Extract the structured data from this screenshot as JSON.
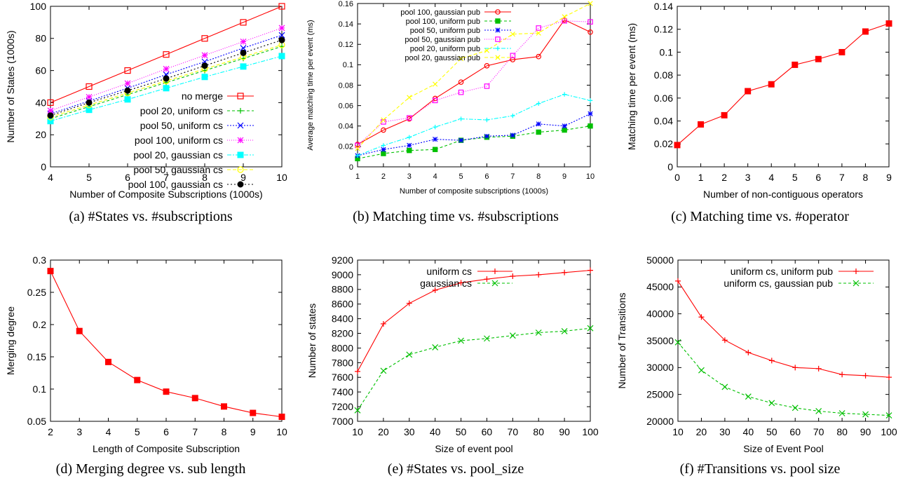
{
  "chart_data": [
    {
      "id": "a",
      "type": "line",
      "caption": "(a)  #States vs. #subscriptions",
      "xlabel": "Number of Composite Subscriptions (1000s)",
      "ylabel": "Number of States (1000s)",
      "xlim": [
        4,
        10
      ],
      "ylim": [
        0,
        100
      ],
      "xticks": [
        4,
        5,
        6,
        7,
        8,
        9,
        10
      ],
      "yticks": [
        0,
        20,
        40,
        60,
        80,
        100
      ],
      "legend_position": "bottom-right",
      "series": [
        {
          "name": "no merge",
          "color": "#ff0000",
          "marker": "open-square",
          "dash": "",
          "x": [
            4,
            5,
            6,
            7,
            8,
            9,
            10
          ],
          "y": [
            40,
            50,
            60,
            70,
            80,
            90,
            100
          ]
        },
        {
          "name": "pool 20, uniform cs",
          "color": "#00c000",
          "marker": "plus",
          "dash": "4,3",
          "x": [
            4,
            5,
            6,
            7,
            8,
            9,
            10
          ],
          "y": [
            30,
            37.5,
            45,
            52.5,
            60,
            67.5,
            75
          ]
        },
        {
          "name": "pool 50, uniform cs",
          "color": "#0000ff",
          "marker": "x",
          "dash": "2,2",
          "x": [
            4,
            5,
            6,
            7,
            8,
            9,
            10
          ],
          "y": [
            33,
            41,
            49,
            57.5,
            65.5,
            74,
            82
          ]
        },
        {
          "name": "pool 100, uniform cs",
          "color": "#ff00ff",
          "marker": "star",
          "dash": "1,2",
          "x": [
            4,
            5,
            6,
            7,
            8,
            9,
            10
          ],
          "y": [
            35,
            43.5,
            52,
            61,
            69.5,
            78,
            86.5
          ]
        },
        {
          "name": "pool 20, gaussian cs",
          "color": "#00ffff",
          "marker": "filled-square",
          "dash": "6,2,2,2",
          "x": [
            4,
            5,
            6,
            7,
            8,
            9,
            10
          ],
          "y": [
            28.5,
            35.5,
            42,
            49,
            56,
            62.5,
            69
          ]
        },
        {
          "name": "pool 50, gaussian cs",
          "color": "#ffff00",
          "marker": "open-circle",
          "dash": "5,3",
          "x": [
            4,
            5,
            6,
            7,
            8,
            9,
            10
          ],
          "y": [
            31,
            38.5,
            46,
            53.5,
            61,
            68.5,
            76
          ]
        },
        {
          "name": "pool 100, gaussian cs",
          "color": "#000000",
          "marker": "filled-circle",
          "dash": "2,3",
          "x": [
            4,
            5,
            6,
            7,
            8,
            9,
            10
          ],
          "y": [
            32,
            40,
            47.5,
            55,
            63,
            71,
            79
          ]
        }
      ]
    },
    {
      "id": "b",
      "type": "line",
      "caption": "(b)  Matching time vs. #subscriptions",
      "xlabel": "Number of composite subscriptions (1000s)",
      "ylabel": "Average matching time per event (ms)",
      "xlim": [
        1,
        10
      ],
      "ylim": [
        0,
        0.16
      ],
      "xticks": [
        1,
        2,
        3,
        4,
        5,
        6,
        7,
        8,
        9,
        10
      ],
      "yticks": [
        0,
        0.02,
        0.04,
        0.06,
        0.08,
        0.1,
        0.12,
        0.14,
        0.16
      ],
      "legend_position": "top-left",
      "series": [
        {
          "name": "pool 100, gaussian pub",
          "color": "#ff0000",
          "marker": "open-circle",
          "dash": "",
          "x": [
            1,
            2,
            3,
            4,
            5,
            6,
            7,
            8,
            9,
            10
          ],
          "y": [
            0.022,
            0.036,
            0.047,
            0.067,
            0.083,
            0.099,
            0.105,
            0.108,
            0.144,
            0.132
          ]
        },
        {
          "name": "pool 100, uniform pub",
          "color": "#00c000",
          "marker": "filled-square",
          "dash": "4,3",
          "x": [
            1,
            2,
            3,
            4,
            5,
            6,
            7,
            8,
            9,
            10
          ],
          "y": [
            0.008,
            0.013,
            0.016,
            0.017,
            0.026,
            0.029,
            0.03,
            0.034,
            0.036,
            0.04
          ]
        },
        {
          "name": "pool 50, uniform pub",
          "color": "#0000ff",
          "marker": "star",
          "dash": "2,2",
          "x": [
            1,
            2,
            3,
            4,
            5,
            6,
            7,
            8,
            9,
            10
          ],
          "y": [
            0.011,
            0.017,
            0.021,
            0.027,
            0.026,
            0.03,
            0.031,
            0.042,
            0.04,
            0.052
          ]
        },
        {
          "name": "pool 50, gaussian pub",
          "color": "#ff00ff",
          "marker": "open-square",
          "dash": "1,2",
          "x": [
            1,
            2,
            3,
            4,
            5,
            6,
            7,
            8,
            9,
            10
          ],
          "y": [
            0.021,
            0.044,
            0.048,
            0.065,
            0.073,
            0.079,
            0.109,
            0.136,
            0.143,
            0.142
          ]
        },
        {
          "name": "pool 20, uniform pub",
          "color": "#00ffff",
          "marker": "plus",
          "dash": "6,2,2,2",
          "x": [
            1,
            2,
            3,
            4,
            5,
            6,
            7,
            8,
            9,
            10
          ],
          "y": [
            0.011,
            0.021,
            0.029,
            0.039,
            0.047,
            0.046,
            0.05,
            0.062,
            0.071,
            0.065
          ]
        },
        {
          "name": "pool 20, gaussian pub",
          "color": "#ffff00",
          "marker": "x",
          "dash": "5,3",
          "x": [
            1,
            2,
            3,
            4,
            5,
            6,
            7,
            8,
            9,
            10
          ],
          "y": [
            0.018,
            0.046,
            0.068,
            0.081,
            0.106,
            0.114,
            0.13,
            0.131,
            0.147,
            0.16
          ]
        }
      ]
    },
    {
      "id": "c",
      "type": "line",
      "caption": "(c) Matching time vs. #operator",
      "xlabel": "Number of non-contiguous operators",
      "ylabel": "Matching time per event (ms)",
      "xlim": [
        0,
        9
      ],
      "ylim": [
        0,
        0.14
      ],
      "xticks": [
        0,
        1,
        2,
        3,
        4,
        5,
        6,
        7,
        8,
        9
      ],
      "yticks": [
        0,
        0.02,
        0.04,
        0.06,
        0.08,
        0.1,
        0.12,
        0.14
      ],
      "legend_position": "none",
      "series": [
        {
          "name": "",
          "color": "#ff0000",
          "marker": "filled-square",
          "dash": "",
          "x": [
            0,
            1,
            2,
            3,
            4,
            5,
            6,
            7,
            8,
            9
          ],
          "y": [
            0.019,
            0.037,
            0.045,
            0.066,
            0.072,
            0.089,
            0.094,
            0.1,
            0.118,
            0.125
          ]
        }
      ]
    },
    {
      "id": "d",
      "type": "line",
      "caption": "(d) Merging degree vs. sub length",
      "xlabel": "Length of Composite Subscription",
      "ylabel": "Merging degree",
      "xlim": [
        2,
        10
      ],
      "ylim": [
        0.05,
        0.3
      ],
      "xticks": [
        2,
        3,
        4,
        5,
        6,
        7,
        8,
        9,
        10
      ],
      "yticks": [
        0.05,
        0.1,
        0.15,
        0.2,
        0.25,
        0.3
      ],
      "legend_position": "none",
      "series": [
        {
          "name": "",
          "color": "#ff0000",
          "marker": "filled-square",
          "dash": "",
          "x": [
            2,
            3,
            4,
            5,
            6,
            7,
            8,
            9,
            10
          ],
          "y": [
            0.283,
            0.19,
            0.142,
            0.114,
            0.096,
            0.086,
            0.073,
            0.063,
            0.057
          ]
        }
      ]
    },
    {
      "id": "e",
      "type": "line",
      "caption": "(e)  #States vs. pool_size",
      "xlabel": "Size of event pool",
      "ylabel": "Number of states",
      "xlim": [
        10,
        100
      ],
      "ylim": [
        7000,
        9200
      ],
      "xticks": [
        10,
        20,
        30,
        40,
        50,
        60,
        70,
        80,
        90,
        100
      ],
      "yticks": [
        7000,
        7200,
        7400,
        7600,
        7800,
        8000,
        8200,
        8400,
        8600,
        8800,
        9000,
        9200
      ],
      "legend_position": "top-left",
      "series": [
        {
          "name": "uniform cs",
          "color": "#ff0000",
          "marker": "plus",
          "dash": "",
          "x": [
            10,
            20,
            30,
            40,
            50,
            60,
            70,
            80,
            90,
            100
          ],
          "y": [
            7680,
            8330,
            8610,
            8790,
            8890,
            8940,
            8980,
            9000,
            9030,
            9060
          ]
        },
        {
          "name": "gaussian cs",
          "color": "#00c000",
          "marker": "x",
          "dash": "4,3",
          "x": [
            10,
            20,
            30,
            40,
            50,
            60,
            70,
            80,
            90,
            100
          ],
          "y": [
            7150,
            7690,
            7910,
            8010,
            8100,
            8130,
            8170,
            8210,
            8230,
            8270
          ]
        }
      ]
    },
    {
      "id": "f",
      "type": "line",
      "caption": "(f)  #Transitions vs. pool size",
      "xlabel": "Size of Event Pool",
      "ylabel": "Number of Transitions",
      "xlim": [
        10,
        100
      ],
      "ylim": [
        20000,
        50000
      ],
      "xticks": [
        10,
        20,
        30,
        40,
        50,
        60,
        70,
        80,
        90,
        100
      ],
      "yticks": [
        20000,
        25000,
        30000,
        35000,
        40000,
        45000,
        50000
      ],
      "legend_position": "top-right",
      "series": [
        {
          "name": "uniform cs, uniform pub",
          "color": "#ff0000",
          "marker": "plus",
          "dash": "",
          "x": [
            10,
            20,
            30,
            40,
            50,
            60,
            70,
            80,
            90,
            100
          ],
          "y": [
            46100,
            39400,
            35100,
            32800,
            31300,
            30000,
            29800,
            28700,
            28500,
            28200
          ]
        },
        {
          "name": "uniform cs, gaussian pub",
          "color": "#00c000",
          "marker": "x",
          "dash": "4,3",
          "x": [
            10,
            20,
            30,
            40,
            50,
            60,
            70,
            80,
            90,
            100
          ],
          "y": [
            34700,
            29500,
            26400,
            24600,
            23400,
            22500,
            21900,
            21500,
            21300,
            21100
          ]
        }
      ]
    }
  ]
}
